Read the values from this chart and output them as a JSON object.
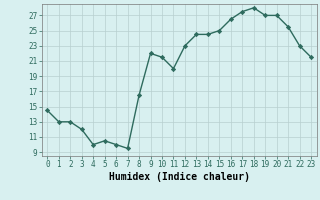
{
  "x": [
    0,
    1,
    2,
    3,
    4,
    5,
    6,
    7,
    8,
    9,
    10,
    11,
    12,
    13,
    14,
    15,
    16,
    17,
    18,
    19,
    20,
    21,
    22,
    23
  ],
  "y": [
    14.5,
    13.0,
    13.0,
    12.0,
    10.0,
    10.5,
    10.0,
    9.5,
    16.5,
    22.0,
    21.5,
    20.0,
    23.0,
    24.5,
    24.5,
    25.0,
    26.5,
    27.5,
    28.0,
    27.0,
    27.0,
    25.5,
    23.0,
    21.5
  ],
  "line_color": "#2E6B5E",
  "marker": "D",
  "marker_size": 2.2,
  "bg_color": "#d8f0f0",
  "grid_color": "#b8d0d0",
  "xlabel": "Humidex (Indice chaleur)",
  "xlim": [
    -0.5,
    23.5
  ],
  "ylim": [
    8.5,
    28.5
  ],
  "yticks": [
    9,
    11,
    13,
    15,
    17,
    19,
    21,
    23,
    25,
    27
  ],
  "xticks": [
    0,
    1,
    2,
    3,
    4,
    5,
    6,
    7,
    8,
    9,
    10,
    11,
    12,
    13,
    14,
    15,
    16,
    17,
    18,
    19,
    20,
    21,
    22,
    23
  ],
  "tick_fontsize": 5.5,
  "xlabel_fontsize": 7.0,
  "linewidth": 1.0
}
